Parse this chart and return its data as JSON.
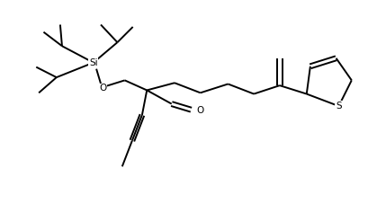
{
  "bg_color": "#ffffff",
  "line_color": "#000000",
  "line_width": 1.4,
  "figsize": [
    4.29,
    2.46
  ],
  "dpi": 100,
  "Si_label": "Si",
  "O_label": "O",
  "S_label": "S"
}
